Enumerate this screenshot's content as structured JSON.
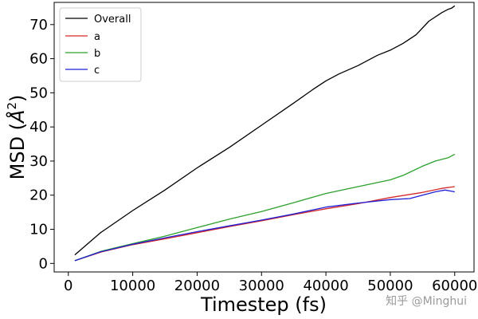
{
  "chart_data": {
    "type": "line",
    "xlabel": "Timestep (fs)",
    "ylabel": "MSD (Å²)",
    "ylabel_prefix": "MSD (",
    "ylabel_unit": "Å",
    "ylabel_sup": "2",
    "ylabel_suffix": ")",
    "xlim": [
      -2200,
      63000
    ],
    "ylim": [
      -2.5,
      76.5
    ],
    "xticks": [
      0,
      10000,
      20000,
      30000,
      40000,
      50000,
      60000
    ],
    "xtick_labels": [
      "0",
      "10000",
      "20000",
      "30000",
      "40000",
      "50000",
      "60000"
    ],
    "yticks": [
      0,
      10,
      20,
      30,
      40,
      50,
      60,
      70
    ],
    "ytick_labels": [
      "0",
      "10",
      "20",
      "30",
      "40",
      "50",
      "60",
      "70"
    ],
    "grid": false,
    "legend_position": "top-left",
    "series": [
      {
        "name": "Overall",
        "color": "#000000",
        "x": [
          1000,
          5000,
          10000,
          15000,
          20000,
          25000,
          30000,
          35000,
          38000,
          40000,
          42000,
          45000,
          48000,
          50000,
          52000,
          54000,
          56000,
          58000,
          59000,
          59500,
          60000
        ],
        "y": [
          2.5,
          9,
          15.5,
          21.5,
          28,
          34,
          40.5,
          47,
          51,
          53.5,
          55.5,
          58,
          61,
          62.5,
          64.5,
          67,
          71,
          73.5,
          74.5,
          74.8,
          75.5
        ]
      },
      {
        "name": "a",
        "color": "#d62728",
        "x": [
          1000,
          5000,
          10000,
          15000,
          20000,
          25000,
          30000,
          35000,
          40000,
          45000,
          50000,
          55000,
          58000,
          60000
        ],
        "y": [
          0.8,
          3.3,
          5.5,
          7.2,
          9,
          10.8,
          12.5,
          14.3,
          16,
          17.5,
          19.3,
          20.8,
          22,
          22.5
        ]
      },
      {
        "name": "b",
        "color": "#2ca02c",
        "x": [
          1000,
          5000,
          10000,
          15000,
          20000,
          25000,
          30000,
          35000,
          40000,
          45000,
          50000,
          52000,
          55000,
          57000,
          59000,
          60000
        ],
        "y": [
          0.8,
          3.5,
          5.8,
          8,
          10.5,
          13,
          15.2,
          17.8,
          20.5,
          22.5,
          24.5,
          25.8,
          28.5,
          30,
          31,
          32
        ]
      },
      {
        "name": "c",
        "color": "#1f1fd6",
        "x": [
          1000,
          5000,
          10000,
          15000,
          20000,
          25000,
          30000,
          35000,
          40000,
          45000,
          50000,
          53000,
          55000,
          57000,
          58500,
          60000
        ],
        "y": [
          0.8,
          3.4,
          5.6,
          7.5,
          9.3,
          11,
          12.7,
          14.5,
          16.5,
          17.7,
          18.7,
          19,
          20,
          21,
          21.5,
          21
        ]
      }
    ]
  },
  "watermark": "知乎 @Minghui"
}
